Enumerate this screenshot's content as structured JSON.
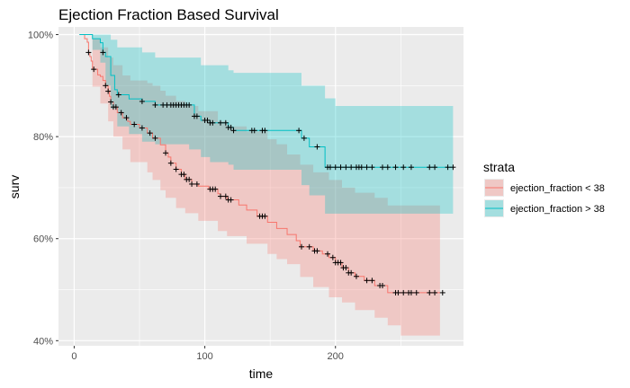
{
  "chart_data": {
    "type": "line",
    "subtype": "kaplan-meier survival curve with confidence bands",
    "title": "Ejection Fraction Based Survival",
    "xlabel": "time",
    "ylabel": "surv",
    "xlim": [
      -12,
      298
    ],
    "ylim": [
      39,
      101.5
    ],
    "x_ticks": [
      0,
      100,
      200
    ],
    "x_tick_labels": [
      "0",
      "100",
      "200"
    ],
    "y_ticks": [
      40,
      60,
      80,
      100
    ],
    "y_tick_labels": [
      "40%",
      "60%",
      "80%",
      "100%"
    ],
    "grid": true,
    "background": "#EBEBEB",
    "legend": {
      "title": "strata",
      "position": "right"
    },
    "series": [
      {
        "name": "ejection_fraction < 38",
        "color": "#F8766D",
        "fill": "#F8766D",
        "steps": [
          [
            4,
            100
          ],
          [
            8,
            99.2
          ],
          [
            10,
            98.5
          ],
          [
            11,
            96.5
          ],
          [
            12,
            95.7
          ],
          [
            13,
            94.8
          ],
          [
            14,
            93.2
          ],
          [
            18,
            92.1
          ],
          [
            20,
            91.8
          ],
          [
            22,
            91
          ],
          [
            24,
            90
          ],
          [
            26,
            88.9
          ],
          [
            27,
            87.9
          ],
          [
            28,
            86.8
          ],
          [
            30,
            85.8
          ],
          [
            33,
            84.7
          ],
          [
            37,
            83.7
          ],
          [
            41,
            83.0
          ],
          [
            43,
            82.4
          ],
          [
            50,
            81.7
          ],
          [
            56,
            80.7
          ],
          [
            60,
            79.7
          ],
          [
            66,
            78.4
          ],
          [
            70,
            76.8
          ],
          [
            72,
            76.0
          ],
          [
            74,
            74.8
          ],
          [
            78,
            73.6
          ],
          [
            82,
            72.6
          ],
          [
            85,
            71.6
          ],
          [
            90,
            70.7
          ],
          [
            95,
            70.3
          ],
          [
            103,
            69.7
          ],
          [
            110,
            68.8
          ],
          [
            112,
            68.3
          ],
          [
            117,
            67.6
          ],
          [
            126,
            66.6
          ],
          [
            132,
            65.6
          ],
          [
            140,
            64.4
          ],
          [
            148,
            63.2
          ],
          [
            155,
            62.0
          ],
          [
            163,
            60.8
          ],
          [
            170,
            59.6
          ],
          [
            173,
            58.4
          ],
          [
            183,
            57.6
          ],
          [
            190,
            57.0
          ],
          [
            195,
            56.3
          ],
          [
            200,
            55.3
          ],
          [
            205,
            54.3
          ],
          [
            210,
            53.3
          ],
          [
            215,
            52.6
          ],
          [
            222,
            51.8
          ],
          [
            230,
            50.8
          ],
          [
            240,
            49.4
          ],
          [
            280,
            49.4
          ]
        ],
        "ci_upper": [
          [
            4,
            100
          ],
          [
            14,
            99.2
          ],
          [
            20,
            97.5
          ],
          [
            26,
            95.5
          ],
          [
            30,
            94
          ],
          [
            37,
            92
          ],
          [
            43,
            91
          ],
          [
            56,
            90.5
          ],
          [
            60,
            90
          ],
          [
            66,
            89
          ],
          [
            70,
            88
          ],
          [
            78,
            87
          ],
          [
            85,
            86
          ],
          [
            95,
            85
          ],
          [
            110,
            83
          ],
          [
            117,
            82
          ],
          [
            132,
            81
          ],
          [
            148,
            79.5
          ],
          [
            155,
            78.5
          ],
          [
            163,
            76.5
          ],
          [
            173,
            74.5
          ],
          [
            183,
            73
          ],
          [
            195,
            71.5
          ],
          [
            205,
            70
          ],
          [
            215,
            69
          ],
          [
            230,
            68
          ],
          [
            240,
            66.5
          ],
          [
            280,
            66.5
          ]
        ],
        "ci_lower": [
          [
            4,
            100
          ],
          [
            14,
            89.8
          ],
          [
            20,
            86.5
          ],
          [
            26,
            83
          ],
          [
            30,
            80
          ],
          [
            37,
            77.5
          ],
          [
            43,
            75
          ],
          [
            56,
            73
          ],
          [
            60,
            71.5
          ],
          [
            66,
            69.5
          ],
          [
            70,
            68
          ],
          [
            78,
            66
          ],
          [
            85,
            65
          ],
          [
            95,
            63.5
          ],
          [
            110,
            61.5
          ],
          [
            117,
            60.5
          ],
          [
            132,
            59
          ],
          [
            148,
            57
          ],
          [
            155,
            56
          ],
          [
            163,
            55
          ],
          [
            173,
            52.5
          ],
          [
            183,
            50.5
          ],
          [
            195,
            48.5
          ],
          [
            205,
            47.5
          ],
          [
            215,
            46
          ],
          [
            230,
            44.5
          ],
          [
            240,
            43
          ],
          [
            250,
            41
          ],
          [
            280,
            41
          ]
        ],
        "censored_x": [
          11,
          15,
          24,
          26,
          28,
          30,
          32,
          36,
          40,
          46,
          52,
          58,
          62,
          70,
          74,
          78,
          82,
          84,
          86,
          88,
          90,
          94,
          104,
          106,
          108,
          112,
          116,
          118,
          120,
          142,
          144,
          146,
          174,
          180,
          184,
          186,
          194,
          198,
          200,
          202,
          204,
          206,
          208,
          210,
          212,
          216,
          224,
          228,
          234,
          236,
          246,
          248,
          252,
          256,
          258,
          262,
          272,
          276,
          282
        ]
      },
      {
        "name": "ejection_fraction > 38",
        "color": "#00BFC4",
        "fill": "#00BFC4",
        "steps": [
          [
            4,
            100
          ],
          [
            14,
            99.2
          ],
          [
            20,
            98.4
          ],
          [
            22,
            96.5
          ],
          [
            24,
            95.7
          ],
          [
            28,
            92.0
          ],
          [
            31,
            89.2
          ],
          [
            33,
            88.2
          ],
          [
            42,
            87.4
          ],
          [
            52,
            86.9
          ],
          [
            62,
            86.2
          ],
          [
            88,
            86.2
          ],
          [
            92,
            84.0
          ],
          [
            97,
            83.2
          ],
          [
            104,
            82.7
          ],
          [
            118,
            81.8
          ],
          [
            122,
            81.2
          ],
          [
            174,
            79.7
          ],
          [
            180,
            78.0
          ],
          [
            192,
            74.0
          ],
          [
            290,
            74.0
          ]
        ],
        "ci_upper": [
          [
            4,
            100
          ],
          [
            24,
            100
          ],
          [
            28,
            99
          ],
          [
            33,
            97.5
          ],
          [
            52,
            96.5
          ],
          [
            62,
            95.5
          ],
          [
            88,
            95.5
          ],
          [
            97,
            94
          ],
          [
            118,
            93
          ],
          [
            122,
            92.5
          ],
          [
            174,
            90
          ],
          [
            192,
            87.5
          ],
          [
            200,
            86
          ],
          [
            290,
            86
          ]
        ],
        "ci_lower": [
          [
            4,
            100
          ],
          [
            14,
            97
          ],
          [
            20,
            94.5
          ],
          [
            24,
            90
          ],
          [
            28,
            85.5
          ],
          [
            33,
            82
          ],
          [
            42,
            80.5
          ],
          [
            52,
            79
          ],
          [
            62,
            78.5
          ],
          [
            88,
            77.5
          ],
          [
            97,
            76
          ],
          [
            104,
            75
          ],
          [
            118,
            74.5
          ],
          [
            122,
            73.5
          ],
          [
            174,
            70.5
          ],
          [
            180,
            68.5
          ],
          [
            192,
            64.9
          ],
          [
            290,
            64.9
          ]
        ],
        "censored_x": [
          22,
          34,
          52,
          62,
          68,
          71,
          74,
          76,
          78,
          80,
          82,
          84,
          86,
          88,
          92,
          94,
          100,
          102,
          104,
          106,
          112,
          116,
          118,
          120,
          122,
          136,
          138,
          144,
          146,
          172,
          176,
          186,
          194,
          196,
          200,
          204,
          208,
          212,
          216,
          218,
          220,
          224,
          228,
          236,
          240,
          246,
          252,
          258,
          272,
          276,
          286,
          290
        ]
      }
    ]
  }
}
